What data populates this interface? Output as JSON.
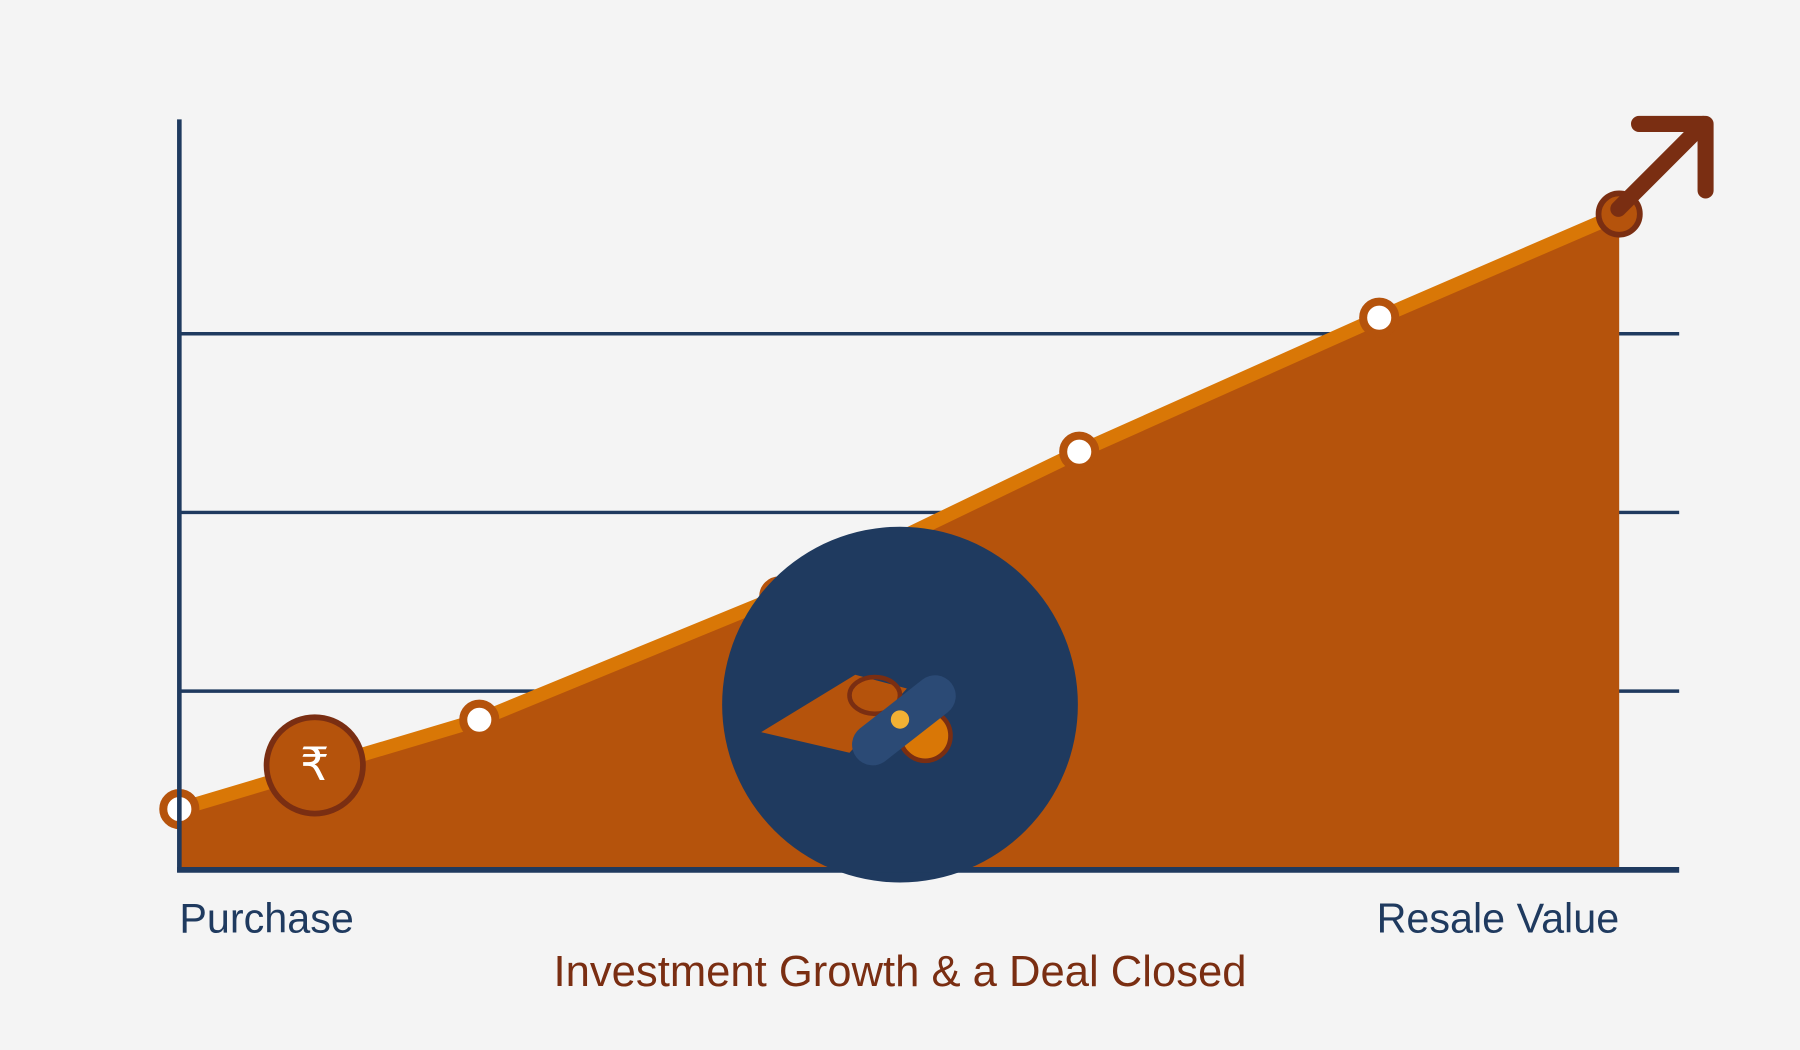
{
  "chart_data": {
    "type": "area",
    "title": "Investment Growth & a Deal Closed",
    "x": [
      0,
      1,
      2,
      3,
      4,
      4.8
    ],
    "xlim": [
      0,
      5
    ],
    "xticks": [
      {
        "value": 0,
        "label": "Purchase"
      },
      {
        "value": 4.8,
        "label": "Resale Value"
      }
    ],
    "ylim": [
      0,
      4.2
    ],
    "yticks": [
      1,
      2,
      3
    ],
    "grid": true,
    "series": [
      {
        "values": [
          0.34,
          0.84,
          1.53,
          2.34,
          3.09,
          3.67
        ],
        "color": "#d97706",
        "fill": "#b5530c"
      }
    ],
    "coin_symbol": "₹"
  }
}
